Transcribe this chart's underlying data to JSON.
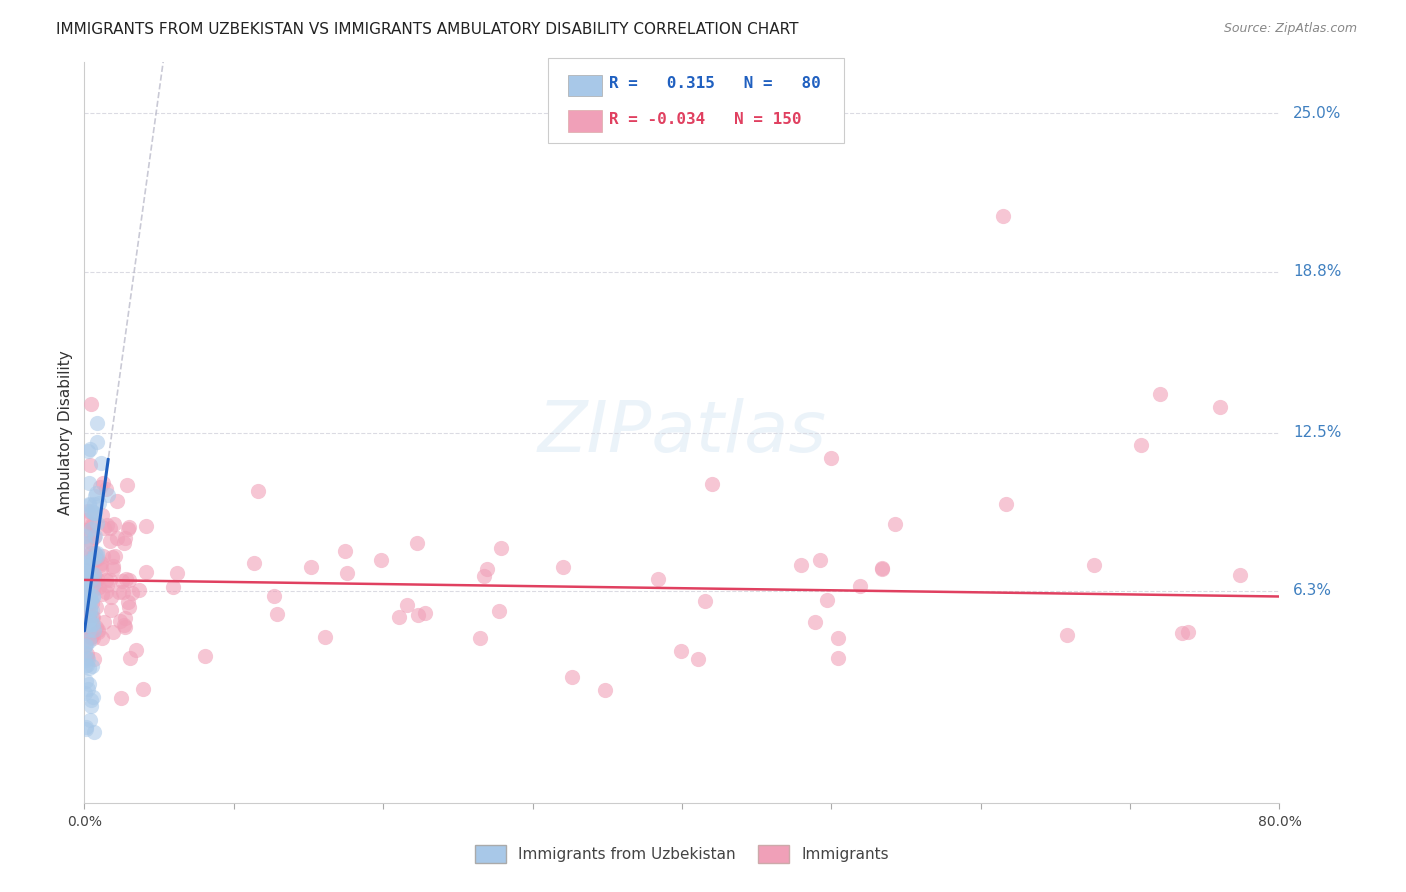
{
  "title": "IMMIGRANTS FROM UZBEKISTAN VS IMMIGRANTS AMBULATORY DISABILITY CORRELATION CHART",
  "source": "Source: ZipAtlas.com",
  "ylabel": "Ambulatory Disability",
  "yticks": [
    "6.3%",
    "12.5%",
    "18.8%",
    "25.0%"
  ],
  "ytick_vals": [
    0.063,
    0.125,
    0.188,
    0.25
  ],
  "xlim": [
    0.0,
    0.8
  ],
  "ylim": [
    -0.02,
    0.27
  ],
  "xtick_positions": [
    0.0,
    0.1,
    0.2,
    0.3,
    0.4,
    0.5,
    0.6,
    0.7,
    0.8
  ],
  "xtick_labels_show": [
    "0.0%",
    "",
    "",
    "",
    "",
    "",
    "",
    "",
    "80.0%"
  ],
  "color_blue": "#a8c8e8",
  "color_pink": "#f0a0b8",
  "trendline_blue_color": "#2060c0",
  "trendline_pink_color": "#e04060",
  "trendline_gray_color": "#b8b8c8",
  "background_color": "#ffffff",
  "grid_color": "#d8d8e0",
  "legend_blue_text_color": "#2060c0",
  "legend_pink_text_color": "#e04060",
  "ytick_color": "#4080c0",
  "watermark_color": "#ddeeff"
}
